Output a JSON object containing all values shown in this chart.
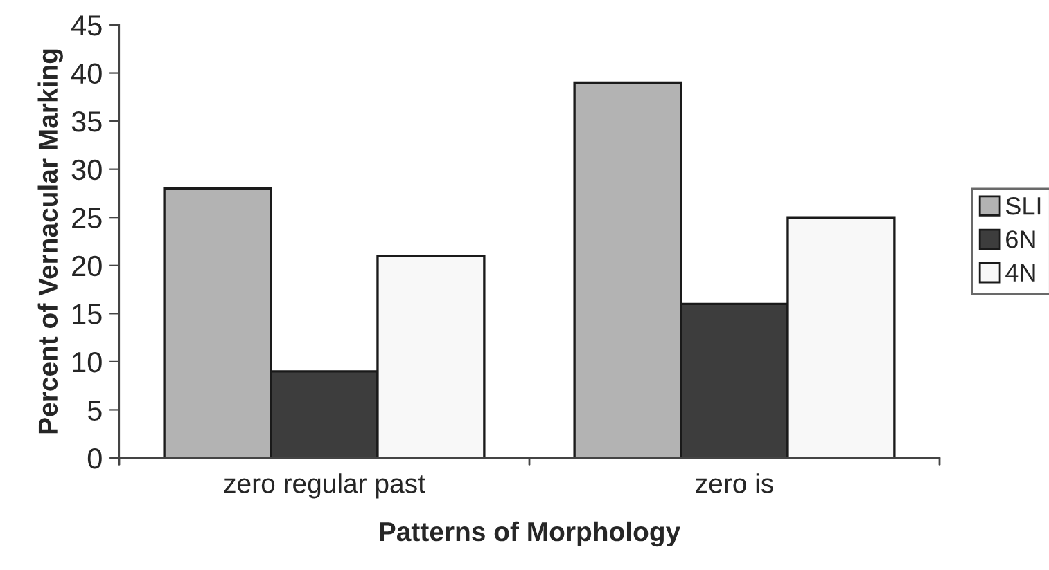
{
  "chart_data": {
    "type": "bar",
    "xlabel": "Patterns of Morphology",
    "ylabel": "Percent of Vernacular Marking",
    "categories": [
      "zero regular past",
      "zero is"
    ],
    "series": [
      {
        "name": "SLI",
        "color": "#b3b3b3",
        "values": [
          28,
          39
        ]
      },
      {
        "name": "6N",
        "color": "#3d3d3d",
        "values": [
          9,
          16
        ]
      },
      {
        "name": "4N",
        "color": "#f8f8f8",
        "values": [
          21,
          25
        ]
      }
    ],
    "ylim": [
      0,
      45
    ],
    "yticks": [
      0,
      5,
      10,
      15,
      20,
      25,
      30,
      35,
      40,
      45
    ],
    "grid": false,
    "legend": "right"
  }
}
